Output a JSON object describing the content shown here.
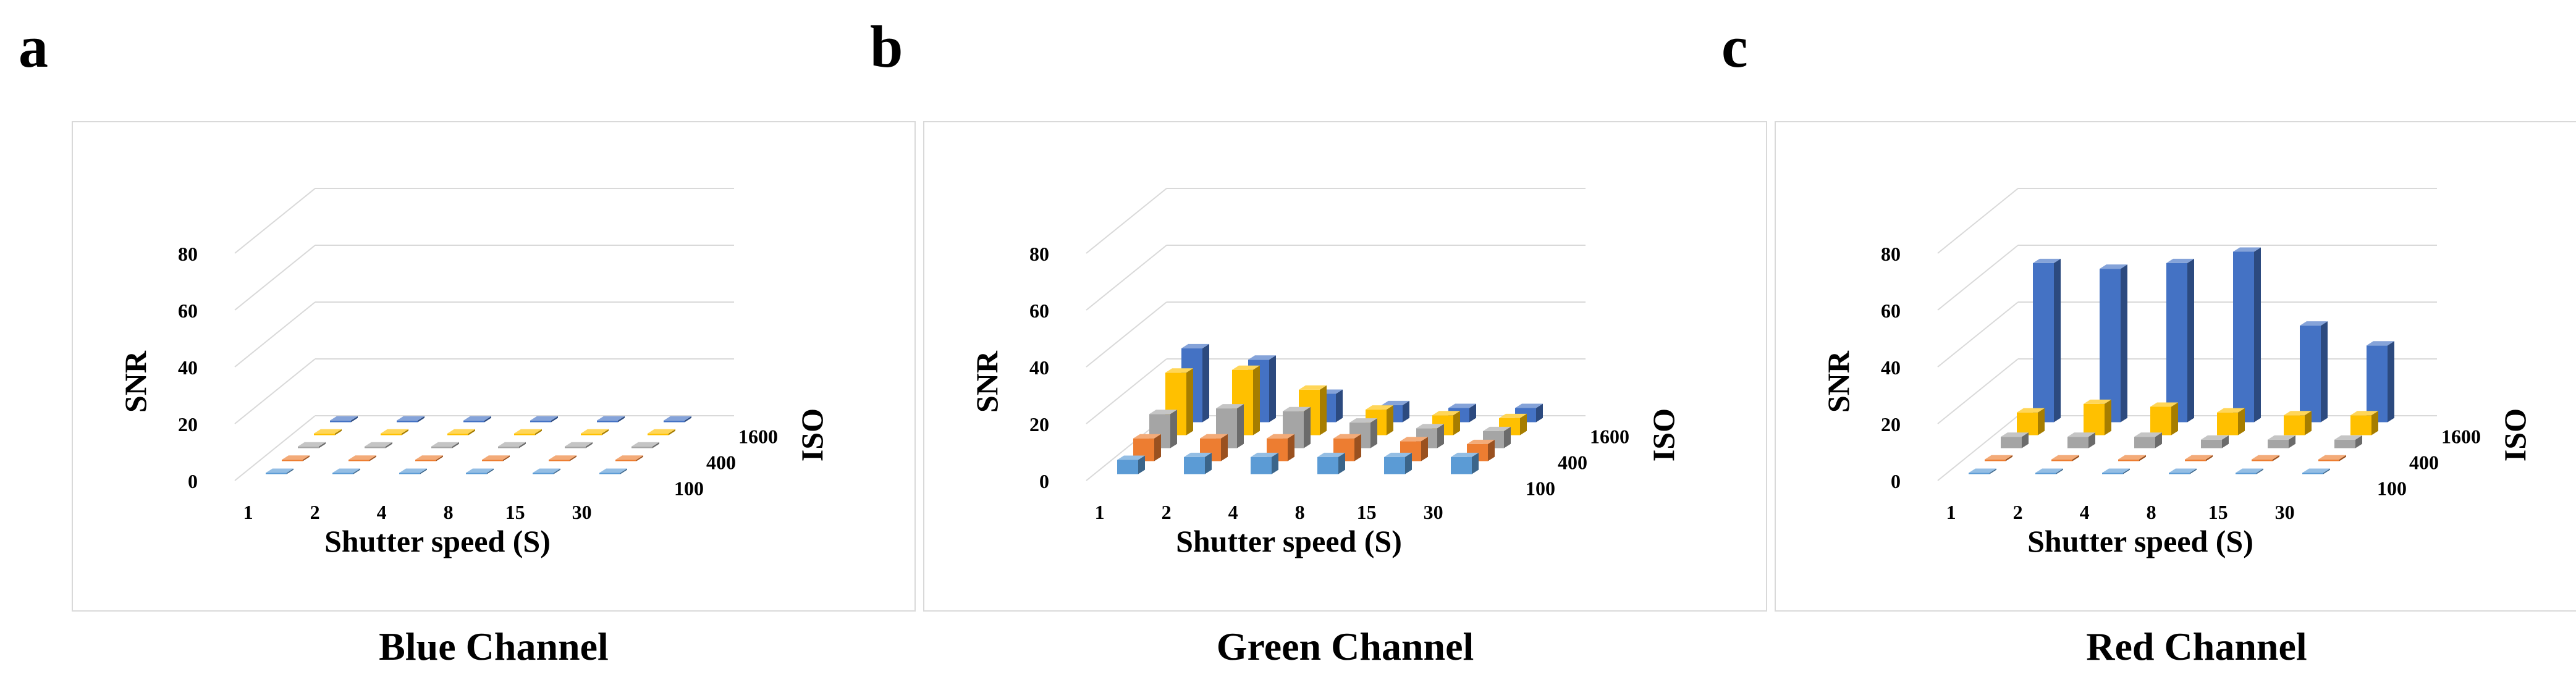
{
  "panels": [
    {
      "letter": "a",
      "caption": "Blue Channel"
    },
    {
      "letter": "b",
      "caption": "Green Channel"
    },
    {
      "letter": "c",
      "caption": "Red Channel"
    }
  ],
  "chart_data": [
    {
      "type": "bar3d",
      "title": "Blue Channel",
      "xlabel": "Shutter speed  (S)",
      "ylabel": "SNR",
      "zlabel": "ISO",
      "ylim": [
        0,
        80
      ],
      "yticks": [
        "0",
        "20",
        "40",
        "60",
        "80"
      ],
      "categories": [
        "1",
        "2",
        "4",
        "8",
        "15",
        "30"
      ],
      "series_labels_shown": [
        "100",
        "400",
        "1600"
      ],
      "series": [
        {
          "values": [
            0.3,
            0.3,
            0.3,
            0.3,
            0.3,
            0.3
          ],
          "color": "#5b9bd5"
        },
        {
          "values": [
            0.5,
            0.5,
            0.5,
            0.5,
            0.5,
            0.5
          ],
          "color": "#ed7d31"
        },
        {
          "values": [
            0.6,
            0.6,
            0.6,
            0.6,
            0.6,
            0.6
          ],
          "color": "#a5a5a5"
        },
        {
          "values": [
            0.6,
            0.6,
            0.6,
            0.6,
            0.6,
            0.6
          ],
          "color": "#ffc000"
        },
        {
          "values": [
            0.6,
            0.6,
            0.6,
            0.6,
            0.6,
            0.6
          ],
          "color": "#4472c4"
        }
      ]
    },
    {
      "type": "bar3d",
      "title": "Green Channel",
      "xlabel": "Shutter speed  (S)",
      "ylabel": "SNR",
      "zlabel": "ISO",
      "ylim": [
        0,
        80
      ],
      "yticks": [
        "0",
        "20",
        "40",
        "60",
        "80"
      ],
      "categories": [
        "1",
        "2",
        "4",
        "8",
        "15",
        "30"
      ],
      "series_labels_shown": [
        "100",
        "400",
        "1600"
      ],
      "series": [
        {
          "values": [
            5,
            6,
            6,
            6,
            6,
            6
          ],
          "color": "#5b9bd5"
        },
        {
          "values": [
            8,
            8,
            8,
            8,
            7,
            6
          ],
          "color": "#ed7d31"
        },
        {
          "values": [
            12,
            14,
            13,
            9,
            7,
            6
          ],
          "color": "#a5a5a5"
        },
        {
          "values": [
            22,
            23,
            16,
            9,
            7,
            6
          ],
          "color": "#ffc000"
        },
        {
          "values": [
            26,
            22,
            10,
            6,
            5,
            5
          ],
          "color": "#4472c4"
        }
      ]
    },
    {
      "type": "bar3d",
      "title": "Red Channel",
      "xlabel": "Shutter speed  (S)",
      "ylabel": "SNR",
      "zlabel": "ISO",
      "ylim": [
        0,
        80
      ],
      "yticks": [
        "0",
        "20",
        "40",
        "60",
        "80"
      ],
      "categories": [
        "1",
        "2",
        "4",
        "8",
        "15",
        "30"
      ],
      "series_labels_shown": [
        "100",
        "400",
        "1600"
      ],
      "series": [
        {
          "values": [
            0.3,
            0.3,
            0.3,
            0.3,
            0.3,
            0.3
          ],
          "color": "#5b9bd5"
        },
        {
          "values": [
            0.6,
            0.6,
            0.6,
            0.6,
            0.6,
            0.6
          ],
          "color": "#ed7d31"
        },
        {
          "values": [
            4,
            4,
            4,
            3,
            3,
            3
          ],
          "color": "#a5a5a5"
        },
        {
          "values": [
            8,
            11,
            10,
            8,
            7,
            7
          ],
          "color": "#ffc000"
        },
        {
          "values": [
            56,
            54,
            56,
            60,
            34,
            27
          ],
          "color": "#4472c4"
        }
      ]
    }
  ]
}
